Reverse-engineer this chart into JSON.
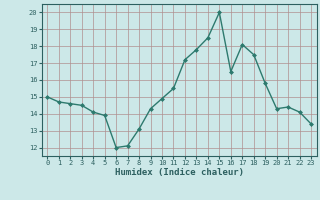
{
  "x": [
    0,
    1,
    2,
    3,
    4,
    5,
    6,
    7,
    8,
    9,
    10,
    11,
    12,
    13,
    14,
    15,
    16,
    17,
    18,
    19,
    20,
    21,
    22,
    23
  ],
  "y": [
    15.0,
    14.7,
    14.6,
    14.5,
    14.1,
    13.9,
    12.0,
    12.1,
    13.1,
    14.3,
    14.9,
    15.5,
    17.2,
    17.8,
    18.5,
    20.0,
    16.5,
    18.1,
    17.5,
    15.8,
    14.3,
    14.4,
    14.1,
    13.4
  ],
  "xlim": [
    -0.5,
    23.5
  ],
  "ylim": [
    11.5,
    20.5
  ],
  "yticks": [
    12,
    13,
    14,
    15,
    16,
    17,
    18,
    19,
    20
  ],
  "xticks": [
    0,
    1,
    2,
    3,
    4,
    5,
    6,
    7,
    8,
    9,
    10,
    11,
    12,
    13,
    14,
    15,
    16,
    17,
    18,
    19,
    20,
    21,
    22,
    23
  ],
  "xlabel": "Humidex (Indice chaleur)",
  "line_color": "#2d7a6e",
  "marker": "D",
  "marker_size": 2.0,
  "bg_color": "#cce8e8",
  "grid_color": "#b09090",
  "text_color": "#2d6060",
  "tick_fontsize": 5.0,
  "xlabel_fontsize": 6.5
}
